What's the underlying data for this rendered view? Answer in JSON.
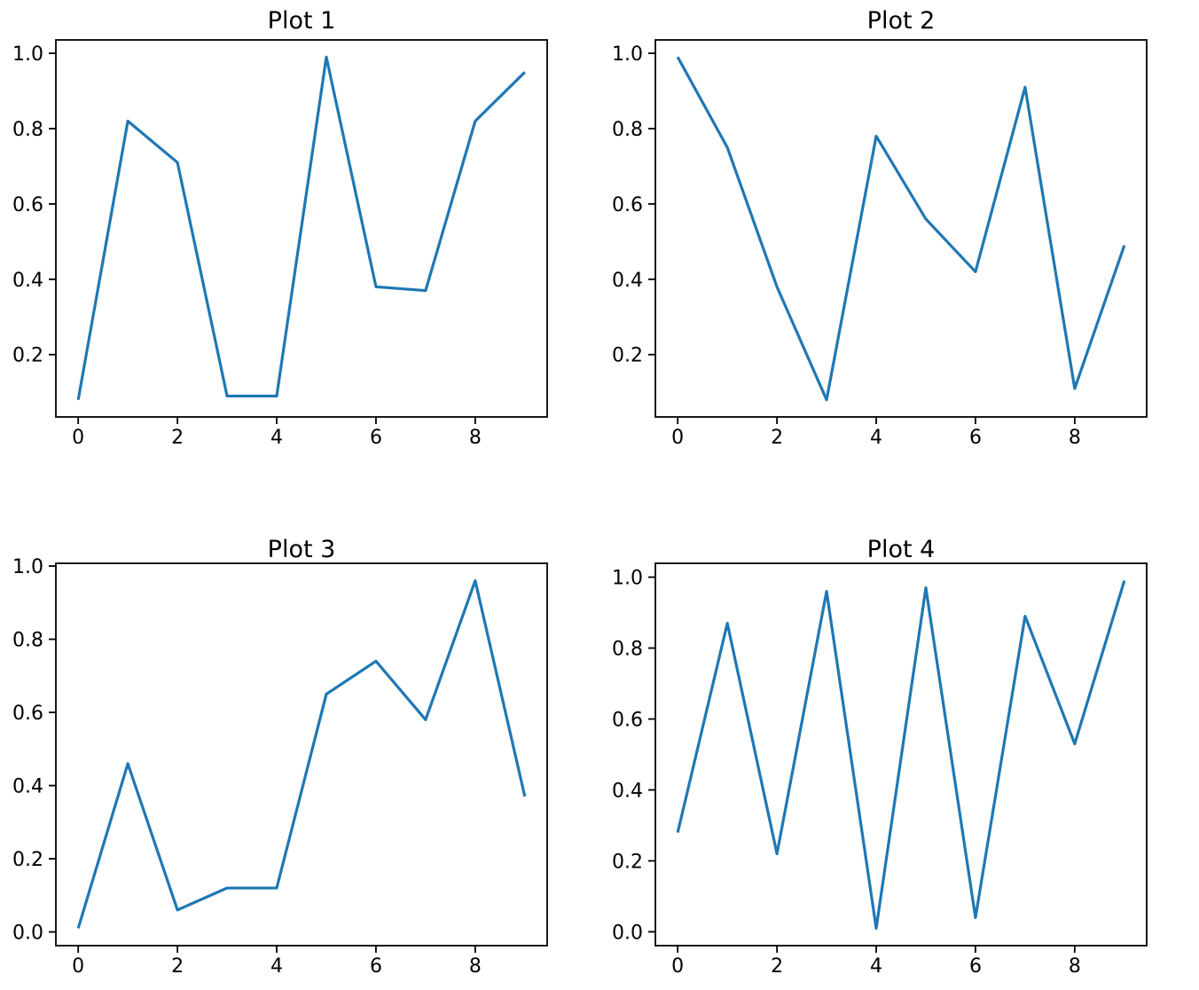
{
  "figure": {
    "background": "#ffffff",
    "rows": 2,
    "cols": 2
  },
  "chart_data": [
    {
      "type": "line",
      "title": "Plot 1",
      "x": [
        0,
        1,
        2,
        3,
        4,
        5,
        6,
        7,
        8,
        9
      ],
      "y": [
        0.08,
        0.82,
        0.71,
        0.09,
        0.09,
        0.99,
        0.38,
        0.37,
        0.82,
        0.95
      ],
      "xlabel": "",
      "ylabel": "",
      "xlim": [
        -0.45,
        9.45
      ],
      "ylim": [
        0.0345,
        1.0355
      ],
      "xticks": [
        0,
        2,
        4,
        6,
        8
      ],
      "xtick_labels": [
        "0",
        "2",
        "4",
        "6",
        "8"
      ],
      "yticks": [
        0.2,
        0.4,
        0.6,
        0.8,
        1.0
      ],
      "ytick_labels": [
        "0.2",
        "0.4",
        "0.6",
        "0.8",
        "1.0"
      ],
      "line_color": "#1f77b4",
      "grid": false,
      "legend": null
    },
    {
      "type": "line",
      "title": "Plot 2",
      "x": [
        0,
        1,
        2,
        3,
        4,
        5,
        6,
        7,
        8,
        9
      ],
      "y": [
        0.99,
        0.75,
        0.38,
        0.08,
        0.78,
        0.56,
        0.42,
        0.91,
        0.11,
        0.49
      ],
      "xlabel": "",
      "ylabel": "",
      "xlim": [
        -0.45,
        9.45
      ],
      "ylim": [
        0.0345,
        1.0355
      ],
      "xticks": [
        0,
        2,
        4,
        6,
        8
      ],
      "xtick_labels": [
        "0",
        "2",
        "4",
        "6",
        "8"
      ],
      "yticks": [
        0.2,
        0.4,
        0.6,
        0.8,
        1.0
      ],
      "ytick_labels": [
        "0.2",
        "0.4",
        "0.6",
        "0.8",
        "1.0"
      ],
      "line_color": "#1f77b4",
      "grid": false,
      "legend": null
    },
    {
      "type": "line",
      "title": "Plot 3",
      "x": [
        0,
        1,
        2,
        3,
        4,
        5,
        6,
        7,
        8,
        9
      ],
      "y": [
        0.01,
        0.46,
        0.06,
        0.12,
        0.12,
        0.65,
        0.74,
        0.58,
        0.96,
        0.37
      ],
      "xlabel": "",
      "ylabel": "",
      "xlim": [
        -0.45,
        9.45
      ],
      "ylim": [
        -0.0375,
        1.0075
      ],
      "xticks": [
        0,
        2,
        4,
        6,
        8
      ],
      "xtick_labels": [
        "0",
        "2",
        "4",
        "6",
        "8"
      ],
      "yticks": [
        0.0,
        0.2,
        0.4,
        0.6,
        0.8,
        1.0
      ],
      "ytick_labels": [
        "0.0",
        "0.2",
        "0.4",
        "0.6",
        "0.8",
        "1.0"
      ],
      "line_color": "#1f77b4",
      "grid": false,
      "legend": null
    },
    {
      "type": "line",
      "title": "Plot 4",
      "x": [
        0,
        1,
        2,
        3,
        4,
        5,
        6,
        7,
        8,
        9
      ],
      "y": [
        0.28,
        0.87,
        0.22,
        0.96,
        0.01,
        0.97,
        0.04,
        0.89,
        0.53,
        0.99
      ],
      "xlabel": "",
      "ylabel": "",
      "xlim": [
        -0.45,
        9.45
      ],
      "ylim": [
        -0.039,
        1.039
      ],
      "xticks": [
        0,
        2,
        4,
        6,
        8
      ],
      "xtick_labels": [
        "0",
        "2",
        "4",
        "6",
        "8"
      ],
      "yticks": [
        0.0,
        0.2,
        0.4,
        0.6,
        0.8,
        1.0
      ],
      "ytick_labels": [
        "0.0",
        "0.2",
        "0.4",
        "0.6",
        "0.8",
        "1.0"
      ],
      "line_color": "#1f77b4",
      "grid": false,
      "legend": null
    }
  ],
  "style": {
    "spine_color": "#000000",
    "tick_color": "#000000",
    "accent_line_color": "#1f77b4"
  }
}
